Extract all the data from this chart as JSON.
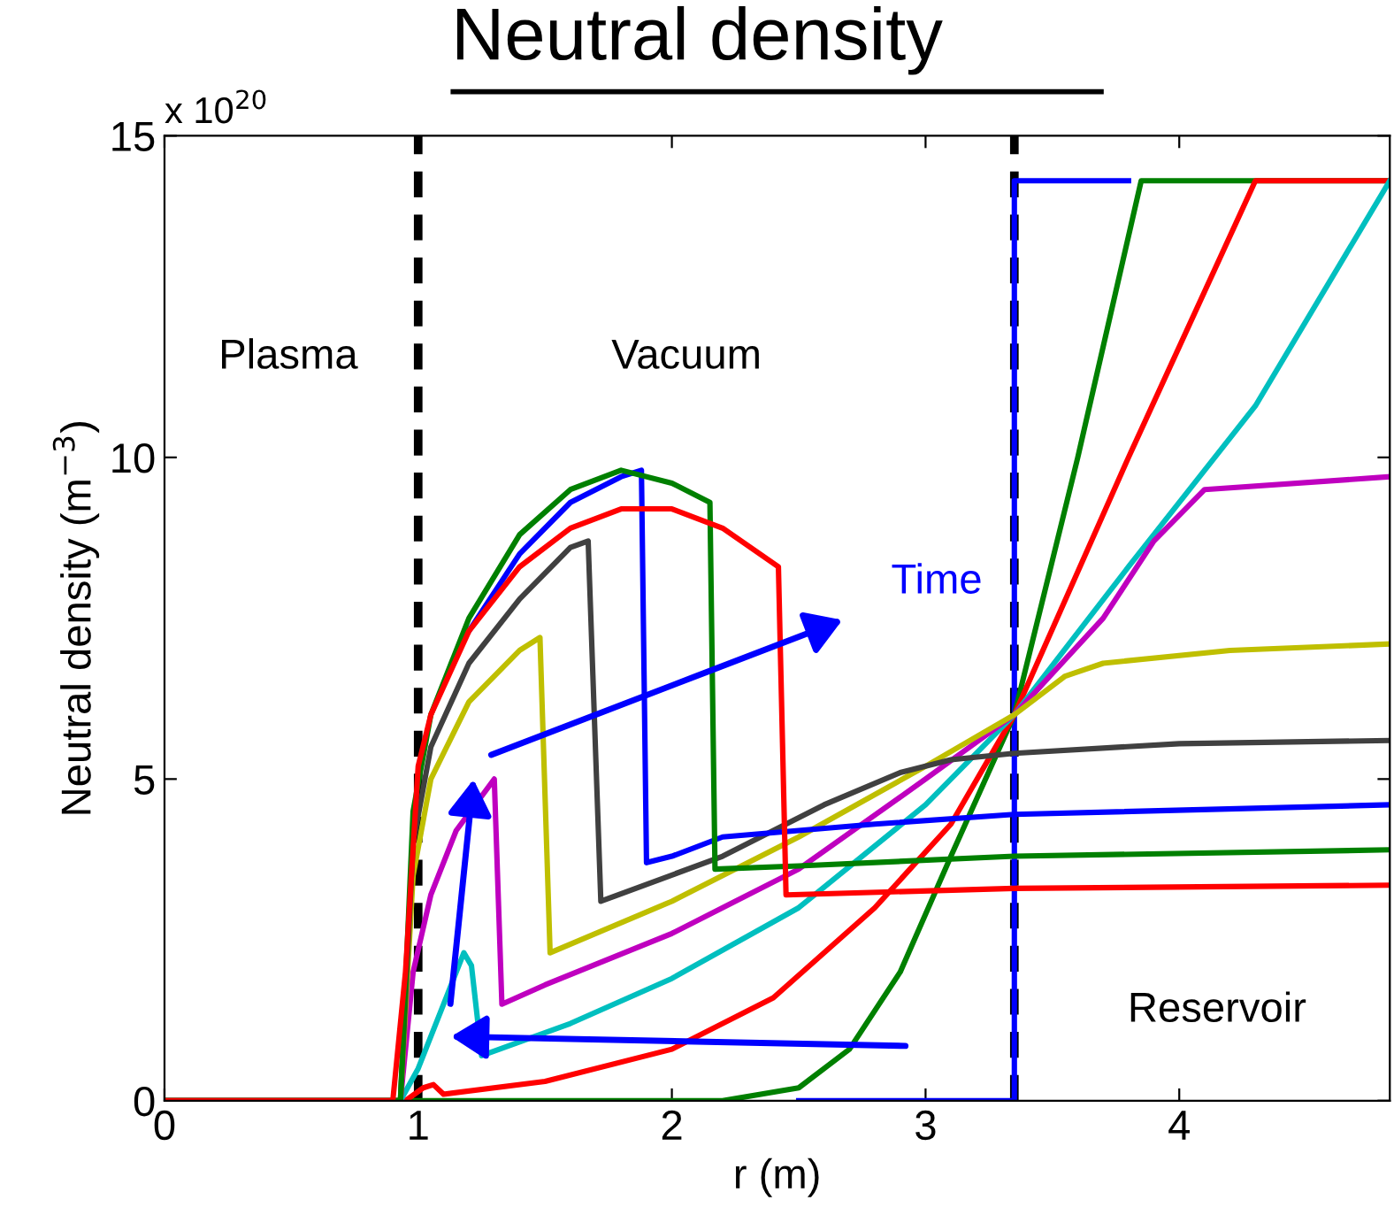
{
  "chart_data": {
    "type": "line",
    "title": "Neutral density",
    "xlabel": "r (m)",
    "ylabel": "Neutral density (m$^{−3}$)",
    "xlim": [
      0,
      4.83
    ],
    "xticks": [
      0,
      1,
      2,
      3,
      4
    ],
    "ylim": [
      0,
      15
    ],
    "yticks": [
      0,
      5,
      10,
      15
    ],
    "annotations": [
      "x 10$^{20}$",
      "Plasma",
      "Vacuum",
      "Reservoir",
      "Time"
    ],
    "ref_lines": [
      {
        "axis": "x",
        "value": 1,
        "color": "#000000",
        "line_style": "dashed"
      },
      {
        "axis": "x",
        "value": 3.35,
        "color": "#000000",
        "line_style": "dashed"
      }
    ],
    "grid": false,
    "legend": false,
    "marker": "none",
    "line_style": "solid",
    "series": [
      {
        "color": "#0000ff",
        "x": [
          2.5,
          3.35,
          3.35,
          3.8
        ],
        "values": [
          0,
          0,
          14.3,
          14.3
        ]
      },
      {
        "color": "#008000",
        "x": [
          0,
          2.2,
          2.5,
          2.7,
          2.9,
          3.1,
          3.35,
          3.6,
          3.85,
          4.83
        ],
        "values": [
          0,
          0,
          0.2,
          0.8,
          2,
          3.8,
          6,
          10,
          14.3,
          14.3
        ]
      },
      {
        "color": "#ff0000",
        "x": [
          0,
          0.95,
          1.02,
          1.06,
          1.1,
          1.5,
          2.0,
          2.4,
          2.8,
          3.1,
          3.35,
          3.8,
          4.3,
          4.83
        ],
        "values": [
          0,
          0,
          0.2,
          0.25,
          0.1,
          0.3,
          0.8,
          1.6,
          3.0,
          4.3,
          6,
          10,
          14.3,
          14.3
        ]
      },
      {
        "color": "#00bfbf",
        "x": [
          0,
          0.93,
          1.0,
          1.1,
          1.18,
          1.21,
          1.25,
          1.6,
          2.0,
          2.5,
          3.0,
          3.35,
          3.8,
          4.3,
          4.83
        ],
        "values": [
          0,
          0,
          0.5,
          1.5,
          2.3,
          2.1,
          0.7,
          1.2,
          1.9,
          3.0,
          4.6,
          6,
          8.3,
          10.8,
          14.3
        ]
      },
      {
        "color": "#bf00bf",
        "x": [
          0,
          0.93,
          0.98,
          1.05,
          1.15,
          1.3,
          1.33,
          1.5,
          2.0,
          2.5,
          3.0,
          3.35,
          3.7,
          3.9,
          4.1,
          4.83
        ],
        "values": [
          0,
          0,
          2,
          3.2,
          4.2,
          5.0,
          1.5,
          1.8,
          2.6,
          3.6,
          5.0,
          6,
          7.5,
          8.7,
          9.5,
          9.7
        ]
      },
      {
        "color": "#bfbf00",
        "x": [
          0,
          0.93,
          0.98,
          1.05,
          1.2,
          1.4,
          1.48,
          1.52,
          2.0,
          2.5,
          3.0,
          3.35,
          3.55,
          3.7,
          4.2,
          4.83
        ],
        "values": [
          0,
          0,
          3.5,
          5,
          6.2,
          7.0,
          7.2,
          2.3,
          3.1,
          4.1,
          5.2,
          6,
          6.6,
          6.8,
          7.0,
          7.1
        ]
      },
      {
        "color": "#404040",
        "x": [
          0,
          0.93,
          0.98,
          1.05,
          1.2,
          1.4,
          1.6,
          1.67,
          1.72,
          2.2,
          2.6,
          2.9,
          3.1,
          3.35,
          4.0,
          4.83
        ],
        "values": [
          0,
          0,
          4,
          5.5,
          6.8,
          7.8,
          8.6,
          8.7,
          3.1,
          3.8,
          4.6,
          5.1,
          5.3,
          5.4,
          5.55,
          5.6
        ]
      },
      {
        "color": "#0000ff",
        "x": [
          1.2,
          1.4,
          1.6,
          1.8,
          1.88,
          1.9,
          2.0,
          2.2,
          2.8,
          3.35,
          4.83
        ],
        "values": [
          7.3,
          8.5,
          9.3,
          9.7,
          9.8,
          3.7,
          3.8,
          4.1,
          4.3,
          4.45,
          4.6
        ]
      },
      {
        "color": "#008000",
        "x": [
          0,
          0.93,
          0.98,
          1.05,
          1.2,
          1.4,
          1.6,
          1.8,
          2.0,
          2.15,
          2.17,
          2.5,
          3.35,
          4.83
        ],
        "values": [
          0,
          0,
          4.5,
          6,
          7.5,
          8.8,
          9.5,
          9.8,
          9.6,
          9.3,
          3.6,
          3.65,
          3.8,
          3.9
        ]
      },
      {
        "color": "#ff0000",
        "x": [
          0,
          0.9,
          0.95,
          1.0,
          1.05,
          1.2,
          1.4,
          1.6,
          1.8,
          2.0,
          2.2,
          2.42,
          2.45,
          3.35,
          4.83
        ],
        "values": [
          0,
          0,
          2,
          5.2,
          6.0,
          7.3,
          8.3,
          8.9,
          9.2,
          9.2,
          8.9,
          8.3,
          3.2,
          3.3,
          3.35
        ]
      }
    ]
  }
}
